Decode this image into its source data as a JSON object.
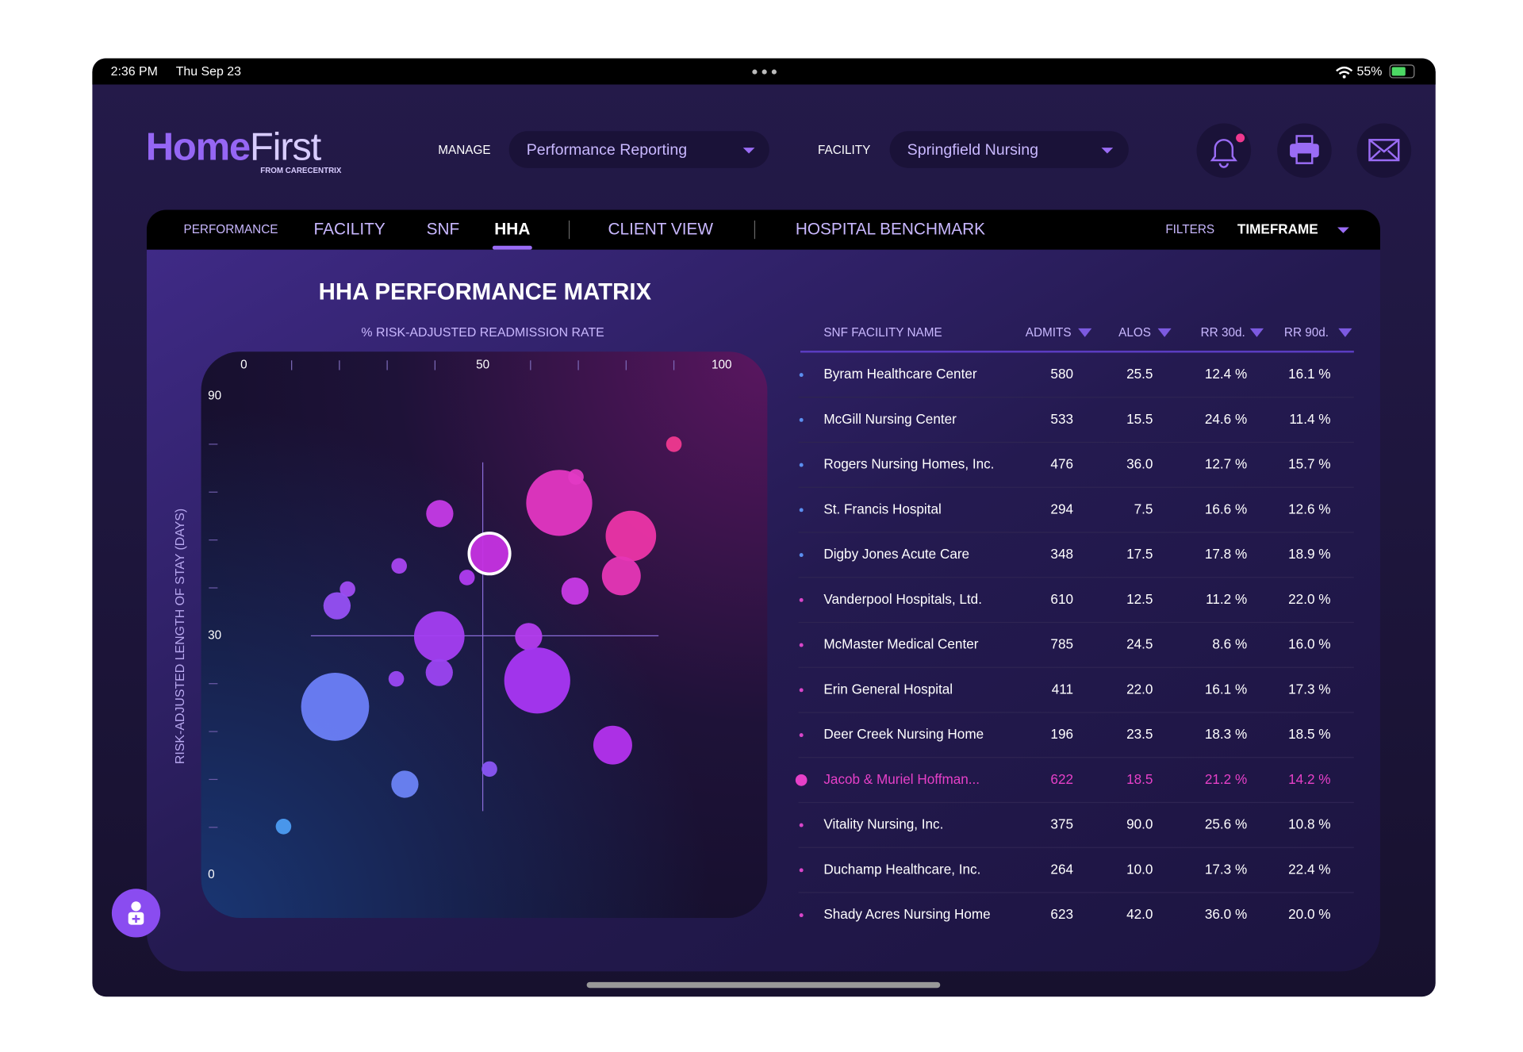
{
  "status_bar": {
    "time": "2:36 PM",
    "date": "Thu Sep 23",
    "battery": "55%"
  },
  "header": {
    "logo_main": "Home",
    "logo_accent": "First",
    "logo_sub": "FROM CARECENTRIX",
    "manage_label": "MANAGE",
    "manage_value": "Performance Reporting",
    "facility_label": "FACILITY",
    "facility_value": "Springfield Nursing"
  },
  "nav": {
    "section": "PERFORMANCE",
    "tabs": [
      "FACILITY",
      "SNF",
      "HHA",
      "CLIENT VIEW",
      "HOSPITAL BENCHMARK"
    ],
    "active_tab": 2,
    "filters": "FILTERS",
    "timeframe": "TIMEFRAME"
  },
  "chart_data": {
    "type": "bubble",
    "title": "HHA PERFORMANCE MATRIX",
    "x_label": "% RISK-ADJUSTED READMISSION RATE",
    "y_label": "RISK-ADJUSTED LENGTH OF STAY (DAYS)",
    "xlim": [
      0,
      100
    ],
    "xticks": [
      0,
      50,
      100
    ],
    "xminor": [
      10,
      20,
      30,
      40,
      60,
      70,
      80,
      90
    ],
    "ylim": [
      0,
      90
    ],
    "yticks": [
      0,
      30,
      90
    ],
    "yminor": [
      6,
      12,
      18,
      24,
      42,
      54,
      66,
      78
    ],
    "reference": {
      "x": 50,
      "y": 30
    },
    "x": [
      90,
      66,
      69.5,
      81,
      79,
      41,
      51.4,
      46.7,
      32.5,
      21.7,
      19.5,
      69.3,
      40.9,
      59.6,
      40.9,
      31.9,
      61.4,
      19.1,
      77.2,
      33.7,
      51.4,
      8.3
    ],
    "y": [
      78,
      63.3,
      69.8,
      55,
      45,
      60.6,
      50.6,
      44.6,
      47.5,
      41.7,
      37.5,
      41.2,
      29.9,
      29.9,
      25.4,
      24.6,
      24.4,
      21.1,
      16.3,
      11.4,
      13.3,
      6.1
    ],
    "size": [
      8,
      34,
      8,
      26,
      20,
      14,
      21,
      8,
      8,
      8,
      14,
      14,
      26,
      14,
      14,
      8,
      34,
      35,
      20,
      14,
      8,
      8
    ],
    "colors": [
      "#f0388f",
      "#e336c2",
      "#e33ac4",
      "#ec34a8",
      "#e636b6",
      "#c53ae6",
      "#c632e2",
      "#b03cf0",
      "#a844f0",
      "#a04cf2",
      "#9650f4",
      "#c83ae6",
      "#a43ef2",
      "#b43cee",
      "#9c44f2",
      "#9a48f2",
      "#a936f4",
      "#6c80f8",
      "#b432ee",
      "#6c84f6",
      "#8a56f4",
      "#4c9cf2"
    ],
    "highlight": 6
  },
  "table": {
    "columns": [
      "SNF FACILITY  NAME",
      "ADMITS",
      "ALOS",
      "RR 30d.",
      "RR 90d."
    ],
    "rows": [
      [
        "Byram Healthcare Center",
        "580",
        "25.5",
        "12.4 %",
        "16.1 %"
      ],
      [
        "McGill Nursing Center",
        "533",
        "15.5",
        "24.6 %",
        "11.4 %"
      ],
      [
        "Rogers Nursing Homes, Inc.",
        "476",
        "36.0",
        "12.7 %",
        "15.7 %"
      ],
      [
        "St. Francis Hospital",
        "294",
        "7.5",
        "16.6 %",
        "12.6 %"
      ],
      [
        "Digby Jones Acute Care",
        "348",
        "17.5",
        "17.8 %",
        "18.9 %"
      ],
      [
        "Vanderpool Hospitals, Ltd.",
        "610",
        "12.5",
        "11.2 %",
        "22.0 %"
      ],
      [
        "McMaster Medical Center",
        "785",
        "24.5",
        "8.6 %",
        "16.0 %"
      ],
      [
        "Erin General Hospital",
        "411",
        "22.0",
        "16.1 %",
        "17.3 %"
      ],
      [
        "Deer Creek Nursing Home",
        "196",
        "23.5",
        "18.3 %",
        "18.5 %"
      ],
      [
        "Jacob & Muriel Hoffman...",
        "622",
        "18.5",
        "21.2 %",
        "14.2 %"
      ],
      [
        "Vitality Nursing, Inc.",
        "375",
        "90.0",
        "25.6 %",
        "10.8 %"
      ],
      [
        "Duchamp Healthcare, Inc.",
        "264",
        "10.0",
        "17.3 %",
        "22.4 %"
      ],
      [
        "Shady Acres Nursing Home",
        "623",
        "42.0",
        "36.0 %",
        "20.0 %"
      ]
    ],
    "highlight_row": 9
  }
}
